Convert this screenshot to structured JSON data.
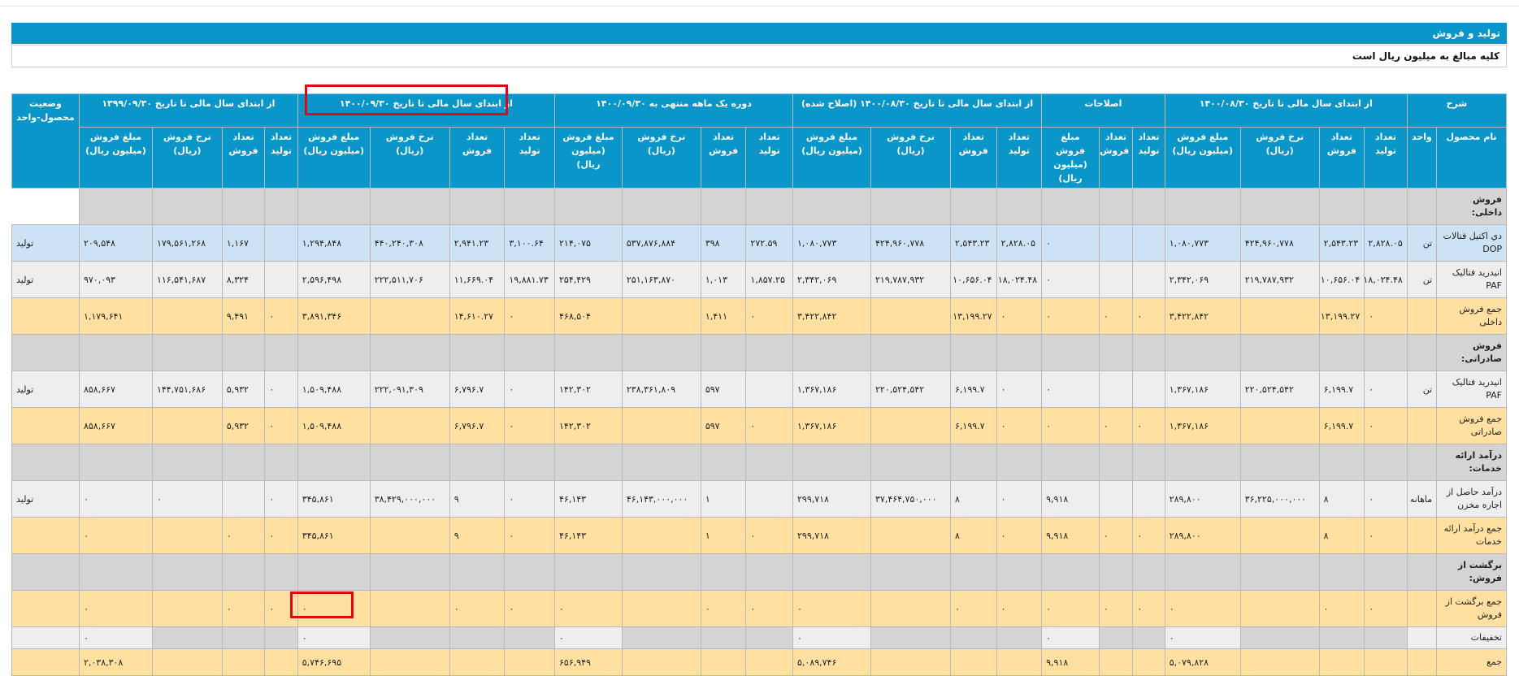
{
  "report": {
    "title": "تولید و فروش",
    "note": "کلیه مبالغ به میلیون ریال است"
  },
  "columns": {
    "groups": {
      "desc": "شرح",
      "g1": "از ابتدای سال مالی تا تاریخ ۱۴۰۰/۰۸/۳۰",
      "adj": "اصلاحات",
      "g2": "از ابتدای سال مالی تا تاریخ ۱۴۰۰/۰۸/۳۰ (اصلاح شده)",
      "g3": "دوره یک ماهه منتهی به ۱۴۰۰/۰۹/۳۰",
      "g4": "از ابتدای سال مالی تا تاریخ ۱۴۰۰/۰۹/۳۰",
      "g5": "از ابتدای سال مالی تا تاریخ ۱۳۹۹/۰۹/۳۰",
      "status": "وضعیت محصول-واحد"
    },
    "sub": {
      "name": "نام محصول",
      "unit": "واحد",
      "prod": "تعداد تولید",
      "sales": "تعداد فروش",
      "rate": "نرخ فروش (ریال)",
      "amount": "مبلغ فروش (میلیون ریال)"
    }
  },
  "rows": [
    {
      "style": "sec",
      "name": "فروش داخلی:",
      "unit": "",
      "c": [
        "",
        "",
        "",
        "",
        "",
        "",
        "",
        "",
        "",
        "",
        "",
        "",
        "",
        "",
        "",
        "",
        "",
        "",
        "",
        "",
        "",
        ""
      ],
      "status": ""
    },
    {
      "style": "blue",
      "name": "دي اكتيل فتالات DOP",
      "unit": "تن",
      "c": [
        "۲,۸۲۸.۰۵",
        "۲,۵۴۳.۲۳",
        "۴۲۴,۹۶۰,۷۷۸",
        "۱,۰۸۰,۷۷۳",
        "",
        "",
        "۰",
        "۲,۸۲۸.۰۵",
        "۲,۵۴۳.۲۳",
        "۴۲۴,۹۶۰,۷۷۸",
        "۱,۰۸۰,۷۷۳",
        "۲۷۲.۵۹",
        "۳۹۸",
        "۵۳۷,۸۷۶,۸۸۴",
        "۲۱۴,۰۷۵",
        "۳,۱۰۰.۶۴",
        "۲,۹۴۱.۲۳",
        "۴۴۰,۲۴۰,۳۰۸",
        "۱,۲۹۴,۸۴۸",
        "",
        "۱,۱۶۷",
        "۱۷۹,۵۶۱,۲۶۸",
        "۲۰۹,۵۴۸"
      ],
      "status": "تولید"
    },
    {
      "style": "grey",
      "name": "انيدريد فتاليک PAF",
      "unit": "تن",
      "c": [
        "۱۸,۰۲۴.۴۸",
        "۱۰,۶۵۶.۰۴",
        "۲۱۹,۷۸۷,۹۳۲",
        "۲,۳۴۲,۰۶۹",
        "",
        "",
        "۰",
        "۱۸,۰۲۴.۴۸",
        "۱۰,۶۵۶.۰۴",
        "۲۱۹,۷۸۷,۹۳۲",
        "۲,۳۴۲,۰۶۹",
        "۱,۸۵۷.۲۵",
        "۱,۰۱۳",
        "۲۵۱,۱۶۳,۸۷۰",
        "۲۵۴,۴۲۹",
        "۱۹,۸۸۱.۷۳",
        "۱۱,۶۶۹.۰۴",
        "۲۲۲,۵۱۱,۷۰۶",
        "۲,۵۹۶,۴۹۸",
        "",
        "۸,۳۲۴",
        "۱۱۶,۵۴۱,۶۸۷",
        "۹۷۰,۰۹۳"
      ],
      "status": "تولید"
    },
    {
      "style": "yel",
      "name": "جمع فروش داخلی",
      "unit": "",
      "c": [
        "۰",
        "۱۳,۱۹۹.۲۷",
        "",
        "۳,۴۲۲,۸۴۲",
        "۰",
        "۰",
        "۰",
        "۰",
        "۱۳,۱۹۹.۲۷",
        "",
        "۳,۴۲۲,۸۴۲",
        "۰",
        "۱,۴۱۱",
        "",
        "۴۶۸,۵۰۴",
        "۰",
        "۱۴,۶۱۰.۲۷",
        "",
        "۳,۸۹۱,۳۴۶",
        "۰",
        "۹,۴۹۱",
        "",
        "۱,۱۷۹,۶۴۱"
      ],
      "status": ""
    },
    {
      "style": "sec",
      "name": "فروش صادراتی:",
      "unit": "",
      "c": [
        "",
        "",
        "",
        "",
        "",
        "",
        "",
        "",
        "",
        "",
        "",
        "",
        "",
        "",
        "",
        "",
        "",
        "",
        "",
        "",
        "",
        "",
        ""
      ],
      "status": ""
    },
    {
      "style": "grey",
      "name": "انيدريد فتاليک PAF",
      "unit": "تن",
      "c": [
        "۰",
        "۶,۱۹۹.۷",
        "۲۲۰,۵۲۴,۵۴۲",
        "۱,۳۶۷,۱۸۶",
        "",
        "",
        "۰",
        "۰",
        "۶,۱۹۹.۷",
        "۲۲۰,۵۲۴,۵۴۲",
        "۱,۳۶۷,۱۸۶",
        "",
        "۵۹۷",
        "۲۳۸,۳۶۱,۸۰۹",
        "۱۴۲,۳۰۲",
        "۰",
        "۶,۷۹۶.۷",
        "۲۲۲,۰۹۱,۳۰۹",
        "۱,۵۰۹,۴۸۸",
        "۰",
        "۵,۹۳۲",
        "۱۴۴,۷۵۱,۶۸۶",
        "۸۵۸,۶۶۷"
      ],
      "status": "تولید"
    },
    {
      "style": "yel",
      "name": "جمع فروش صادراتی",
      "unit": "",
      "c": [
        "۰",
        "۶,۱۹۹.۷",
        "",
        "۱,۳۶۷,۱۸۶",
        "۰",
        "۰",
        "۰",
        "۰",
        "۶,۱۹۹.۷",
        "",
        "۱,۳۶۷,۱۸۶",
        "۰",
        "۵۹۷",
        "",
        "۱۴۲,۳۰۲",
        "۰",
        "۶,۷۹۶.۷",
        "",
        "۱,۵۰۹,۴۸۸",
        "۰",
        "۵,۹۳۲",
        "",
        "۸۵۸,۶۶۷"
      ],
      "status": ""
    },
    {
      "style": "sec",
      "name": "درآمد ارائه خدمات:",
      "unit": "",
      "c": [
        "",
        "",
        "",
        "",
        "",
        "",
        "",
        "",
        "",
        "",
        "",
        "",
        "",
        "",
        "",
        "",
        "",
        "",
        "",
        "",
        "",
        "",
        ""
      ],
      "status": ""
    },
    {
      "style": "grey",
      "name": "درآمد حاصل از اجاره مخزن",
      "unit": "ماهانه",
      "c": [
        "۰",
        "۸",
        "۳۶,۲۲۵,۰۰۰,۰۰۰",
        "۲۸۹,۸۰۰",
        "",
        "",
        "۹,۹۱۸",
        "۰",
        "۸",
        "۳۷,۴۶۴,۷۵۰,۰۰۰",
        "۲۹۹,۷۱۸",
        "",
        "۱",
        "۴۶,۱۴۳,۰۰۰,۰۰۰",
        "۴۶,۱۴۳",
        "۰",
        "۹",
        "۳۸,۴۲۹,۰۰۰,۰۰۰",
        "۳۴۵,۸۶۱",
        "۰",
        "",
        "۰",
        "۰"
      ],
      "status": "تولید"
    },
    {
      "style": "yel",
      "name": "جمع درآمد ارائه خدمات",
      "unit": "",
      "c": [
        "۰",
        "۸",
        "",
        "۲۸۹,۸۰۰",
        "۰",
        "۰",
        "۹,۹۱۸",
        "۰",
        "۸",
        "",
        "۲۹۹,۷۱۸",
        "۰",
        "۱",
        "",
        "۴۶,۱۴۳",
        "۰",
        "۹",
        "",
        "۳۴۵,۸۶۱",
        "۰",
        "۰",
        "",
        "۰"
      ],
      "status": ""
    },
    {
      "style": "sec",
      "name": "برگشت از فروش:",
      "unit": "",
      "c": [
        "",
        "",
        "",
        "",
        "",
        "",
        "",
        "",
        "",
        "",
        "",
        "",
        "",
        "",
        "",
        "",
        "",
        "",
        "",
        "",
        "",
        "",
        ""
      ],
      "status": ""
    },
    {
      "style": "yel",
      "name": "جمع برگشت از فروش",
      "unit": "",
      "c": [
        "۰",
        "۰",
        "",
        "۰",
        "۰",
        "۰",
        "۰",
        "۰",
        "۰",
        "",
        "۰",
        "۰",
        "۰",
        "",
        "۰",
        "۰",
        "۰",
        "",
        "۰",
        "۰",
        "۰",
        "",
        "۰"
      ],
      "status": ""
    },
    {
      "style": "grey thin",
      "name": "تخفیفات",
      "unit": "",
      "c": [
        "",
        "",
        "",
        "۰",
        "",
        "",
        "۰",
        "",
        "",
        "",
        "۰",
        "",
        "",
        "",
        "۰",
        "",
        "",
        "",
        "۰",
        "",
        "",
        "",
        "۰"
      ],
      "status": ""
    },
    {
      "style": "yel total",
      "name": "جمع",
      "unit": "",
      "c": [
        "",
        "",
        "",
        "۵,۰۷۹,۸۲۸",
        "",
        "",
        "۹,۹۱۸",
        "",
        "",
        "",
        "۵,۰۸۹,۷۴۶",
        "",
        "",
        "",
        "۶۵۶,۹۴۹",
        "",
        "",
        "",
        "۵,۷۴۶,۶۹۵",
        "",
        "",
        "",
        "۲,۰۳۸,۳۰۸"
      ],
      "status": ""
    }
  ]
}
